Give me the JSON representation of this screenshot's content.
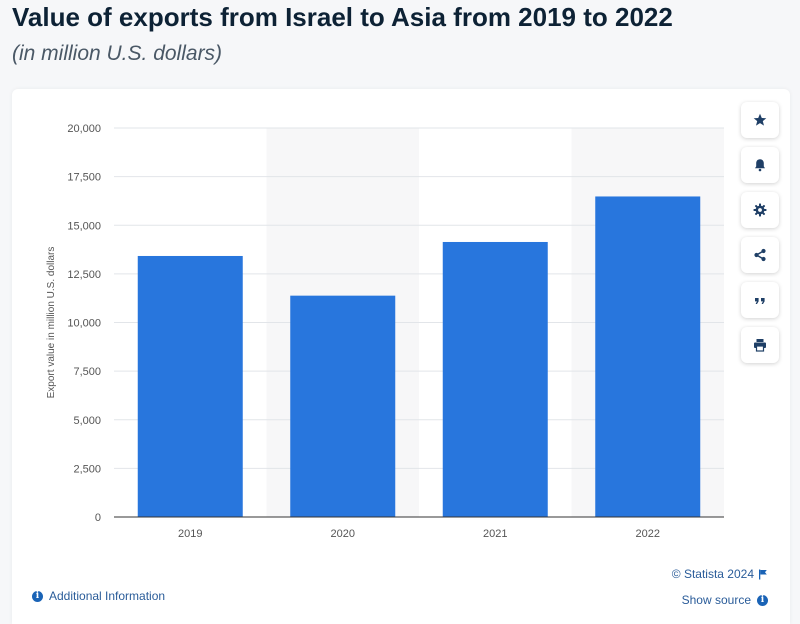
{
  "header": {
    "title": "Value of exports from Israel to Asia from 2019 to 2022",
    "subtitle": "(in million U.S. dollars)"
  },
  "toolbar": {
    "buttons": [
      {
        "icon": "star-icon"
      },
      {
        "icon": "bell-icon"
      },
      {
        "icon": "gear-icon"
      },
      {
        "icon": "share-icon"
      },
      {
        "icon": "quote-icon"
      },
      {
        "icon": "print-icon"
      }
    ]
  },
  "footer": {
    "credit": "© Statista 2024",
    "show_source": "Show source",
    "additional_info": "Additional Information"
  },
  "colors": {
    "bar": "#2876dd",
    "band": "#f7f7f8",
    "grid": "#e2e5e9",
    "axis_text": "#555555",
    "link": "#2a5c99"
  },
  "chart_data": {
    "type": "bar",
    "title": "Value of exports from Israel to Asia from 2019 to 2022",
    "xlabel": "",
    "ylabel": "Export value in million U.S. dollars",
    "categories": [
      "2019",
      "2020",
      "2021",
      "2022"
    ],
    "values": [
      13420,
      11380,
      14140,
      16480
    ],
    "ylim": [
      0,
      20000
    ],
    "yticks": [
      0,
      2500,
      5000,
      7500,
      10000,
      12500,
      15000,
      17500,
      20000
    ],
    "ytick_labels": [
      "0",
      "2,500",
      "5,000",
      "7,500",
      "10,000",
      "12,500",
      "15,000",
      "17,500",
      "20,000"
    ],
    "grid": true,
    "legend": "none"
  }
}
